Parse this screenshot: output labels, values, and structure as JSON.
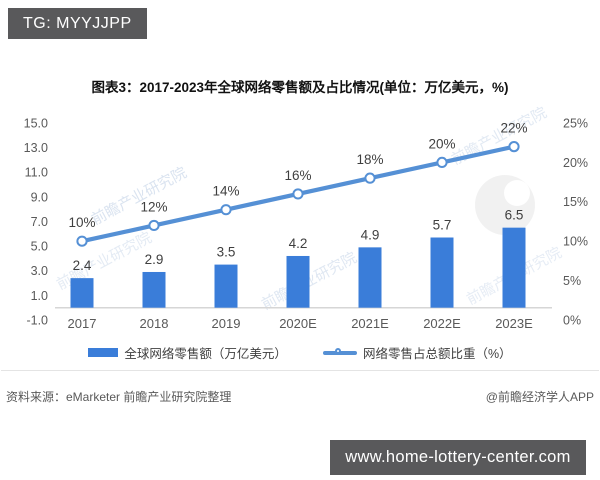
{
  "badge": {
    "label": "TG: MYYJJPP"
  },
  "title": "图表3：2017-2023年全球网络零售额及占比情况(单位：万亿美元，%)",
  "chart_data": {
    "type": "bar",
    "subtype": "bar-line-combo",
    "title": "图表3：2017-2023年全球网络零售额及占比情况(单位：万亿美元，%)",
    "categories": [
      "2017",
      "2018",
      "2019",
      "2020E",
      "2021E",
      "2022E",
      "2023E"
    ],
    "series": [
      {
        "name": "全球网络零售额（万亿美元）",
        "type": "bar",
        "axis": "left",
        "values": [
          2.4,
          2.9,
          3.5,
          4.2,
          4.9,
          5.7,
          6.5
        ],
        "labels": [
          "2.4",
          "2.9",
          "3.5",
          "4.2",
          "4.9",
          "5.7",
          "6.5"
        ],
        "color": "#3a7dd9"
      },
      {
        "name": "网络零售占总额比重（%）",
        "type": "line",
        "axis": "right",
        "values": [
          10,
          12,
          14,
          16,
          18,
          20,
          22
        ],
        "labels": [
          "10%",
          "12%",
          "14%",
          "16%",
          "18%",
          "20%",
          "22%"
        ],
        "color": "#5590d5",
        "marker": "open-circle"
      }
    ],
    "left_axis": {
      "min": -1,
      "max": 15,
      "step": 2,
      "tick_labels": [
        "15.0",
        "13.0",
        "11.0",
        "9.0",
        "7.0",
        "5.0",
        "3.0",
        "1.0",
        "-1.0"
      ]
    },
    "right_axis": {
      "min": 0,
      "max": 25,
      "step": 5,
      "tick_labels": [
        "25%",
        "20%",
        "15%",
        "10%",
        "5%",
        "0%"
      ]
    },
    "grid": false,
    "legend_position": "bottom",
    "xlabel": "",
    "ylabel": ""
  },
  "legend": [
    {
      "label": "全球网络零售额（万亿美元）"
    },
    {
      "label": "网络零售占总额比重（%）"
    }
  ],
  "watermark": {
    "text": "前瞻产业研究院"
  },
  "footer": {
    "source": "资料来源：eMarketer 前瞻产业研究院整理",
    "credit": "@前瞻经济学人APP"
  },
  "banner": {
    "url": "www.home-lottery-center.com"
  },
  "colors": {
    "bar": "#3a7dd9",
    "line": "#5590d5",
    "badge_bg": "#59595b",
    "banner_bg": "#59595b",
    "axis_text": "#595959",
    "value_text": "#3f3f3f",
    "axis_line": "#d6d6d6",
    "watermark": "#9fb8d8"
  }
}
